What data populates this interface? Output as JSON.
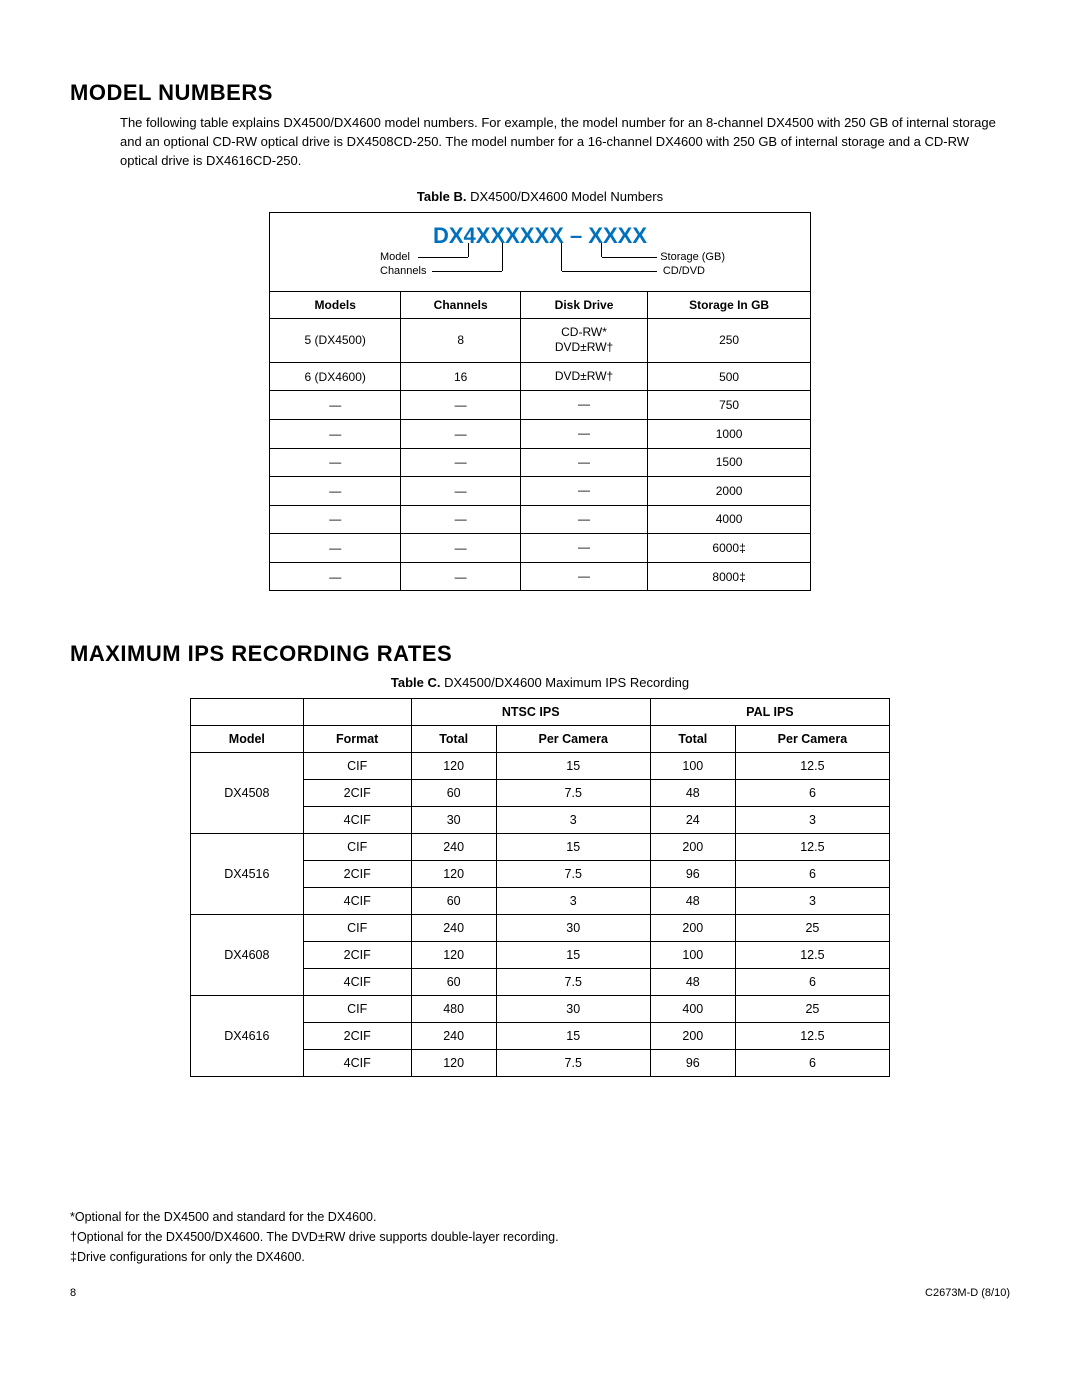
{
  "section1": {
    "heading": "MODEL NUMBERS",
    "intro": "The following table explains DX4500/DX4600 model numbers. For example, the model number for an 8-channel DX4500 with 250 GB of internal storage and an optional CD-RW optical drive is DX4508CD-250. The model number for a 16-channel DX4600 with 250 GB of internal storage and a CD-RW optical drive is DX4616CD-250.",
    "caption_bold": "Table B.",
    "caption_rest": " DX4500/DX4600 Model Numbers",
    "pattern": "DX4XXXXXX – XXXX",
    "pattern_labels": {
      "model": "Model",
      "channels": "Channels",
      "storage": "Storage (GB)",
      "cddvd": "CD/DVD"
    },
    "headers": [
      "Models",
      "Channels",
      "Disk Drive",
      "Storage In GB"
    ],
    "rows": [
      {
        "model": "5 (DX4500)",
        "channels": "8",
        "drive1": "CD-RW*",
        "drive2": "DVD±RW†",
        "storage": "250"
      },
      {
        "model": "6 (DX4600)",
        "channels": "16",
        "drive1": "DVD±RW†",
        "drive2": "",
        "storage": "500"
      },
      {
        "model": "—",
        "channels": "—",
        "drive1": "—",
        "drive2": "",
        "storage": "750"
      },
      {
        "model": "—",
        "channels": "—",
        "drive1": "—",
        "drive2": "",
        "storage": "1000"
      },
      {
        "model": "—",
        "channels": "—",
        "drive1": "—",
        "drive2": "",
        "storage": "1500"
      },
      {
        "model": "—",
        "channels": "—",
        "drive1": "—",
        "drive2": "",
        "storage": "2000"
      },
      {
        "model": "—",
        "channels": "—",
        "drive1": "—",
        "drive2": "",
        "storage": "4000"
      },
      {
        "model": "—",
        "channels": "—",
        "drive1": "—",
        "drive2": "",
        "storage": "6000‡"
      },
      {
        "model": "—",
        "channels": "—",
        "drive1": "—",
        "drive2": "",
        "storage": "8000‡"
      }
    ]
  },
  "section2": {
    "heading": "MAXIMUM IPS RECORDING RATES",
    "caption_bold": "Table C.",
    "caption_rest": " DX4500/DX4600 Maximum IPS Recording",
    "group_headers": {
      "ntsc": "NTSC IPS",
      "pal": "PAL IPS"
    },
    "col_headers": {
      "model": "Model",
      "format": "Format",
      "total": "Total",
      "per": "Per Camera"
    },
    "blocks": [
      {
        "model": "DX4508",
        "rows": [
          {
            "format": "CIF",
            "nt": "120",
            "np": "15",
            "pt": "100",
            "pp": "12.5"
          },
          {
            "format": "2CIF",
            "nt": "60",
            "np": "7.5",
            "pt": "48",
            "pp": "6"
          },
          {
            "format": "4CIF",
            "nt": "30",
            "np": "3",
            "pt": "24",
            "pp": "3"
          }
        ]
      },
      {
        "model": "DX4516",
        "rows": [
          {
            "format": "CIF",
            "nt": "240",
            "np": "15",
            "pt": "200",
            "pp": "12.5"
          },
          {
            "format": "2CIF",
            "nt": "120",
            "np": "7.5",
            "pt": "96",
            "pp": "6"
          },
          {
            "format": "4CIF",
            "nt": "60",
            "np": "3",
            "pt": "48",
            "pp": "3"
          }
        ]
      },
      {
        "model": "DX4608",
        "rows": [
          {
            "format": "CIF",
            "nt": "240",
            "np": "30",
            "pt": "200",
            "pp": "25"
          },
          {
            "format": "2CIF",
            "nt": "120",
            "np": "15",
            "pt": "100",
            "pp": "12.5"
          },
          {
            "format": "4CIF",
            "nt": "60",
            "np": "7.5",
            "pt": "48",
            "pp": "6"
          }
        ]
      },
      {
        "model": "DX4616",
        "rows": [
          {
            "format": "CIF",
            "nt": "480",
            "np": "30",
            "pt": "400",
            "pp": "25"
          },
          {
            "format": "2CIF",
            "nt": "240",
            "np": "15",
            "pt": "200",
            "pp": "12.5"
          },
          {
            "format": "4CIF",
            "nt": "120",
            "np": "7.5",
            "pt": "96",
            "pp": "6"
          }
        ]
      }
    ]
  },
  "footnotes": {
    "f1": "*Optional for the DX4500 and standard for the DX4600.",
    "f2": "†Optional for the DX4500/DX4600. The DVD±RW drive supports double-layer recording.",
    "f3": "‡Drive configurations for only the DX4600."
  },
  "footer": {
    "page": "8",
    "doc": "C2673M-D (8/10)"
  },
  "style": {
    "accent_color": "#0071bc",
    "border_color": "#000000",
    "bg": "#ffffff"
  }
}
